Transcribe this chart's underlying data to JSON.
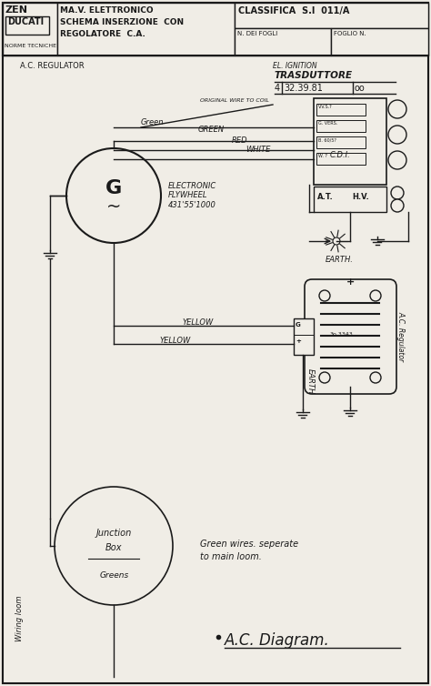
{
  "bg_color": "#f0ede6",
  "line_color": "#1a1a1a",
  "title_line1": "MA.V. ELETTRONICO",
  "title_line2": "SCHEMA INSERZIONE  CON",
  "title_line3": "REGOLATORE  C.A.",
  "classifica": "CLASSIFICA  S.I  011/A",
  "n_dei_fogli": "N. DEI FOGLI",
  "foglio_n": "FOGLIO N.",
  "norme_tecniche": "NORME TECNICHE",
  "zen_text": "ZEN",
  "ducati_text": "DUCATI",
  "ac_regulator_label": "A.C. REGULATOR",
  "el_ignition": "EL. IGNITION",
  "trasduttore": "TRASDUTTORE",
  "trasduttore_num": "4|32.39.81|oo",
  "generator_label": "G",
  "flywheel_text": "ELECTRONIC\nFLYWHEEL\n431'55'1000",
  "green_label": "Green",
  "original_wire": "ORIGINAL WIRE TO COIL",
  "green2": "GREEN",
  "red_label": "RED",
  "white_label": "WHITE",
  "cdi_label": "C.D.I.",
  "at_label": "A.T.",
  "hv_label": "H.V.",
  "earth_label1": "EARTH.",
  "yellow1": "YELLOW",
  "yellow2": "YELLOW",
  "earth_label2": "EARTH",
  "ac_reg_label": "A.C. Regulator",
  "junction_box": "Junction\nBox",
  "greens_label": "Greens",
  "wiring_loom": "Wiring loom",
  "green_wires_line1": "Green wires. seperate",
  "green_wires_line2": "to main loom.",
  "ac_diagram": "A.C. Diagram."
}
